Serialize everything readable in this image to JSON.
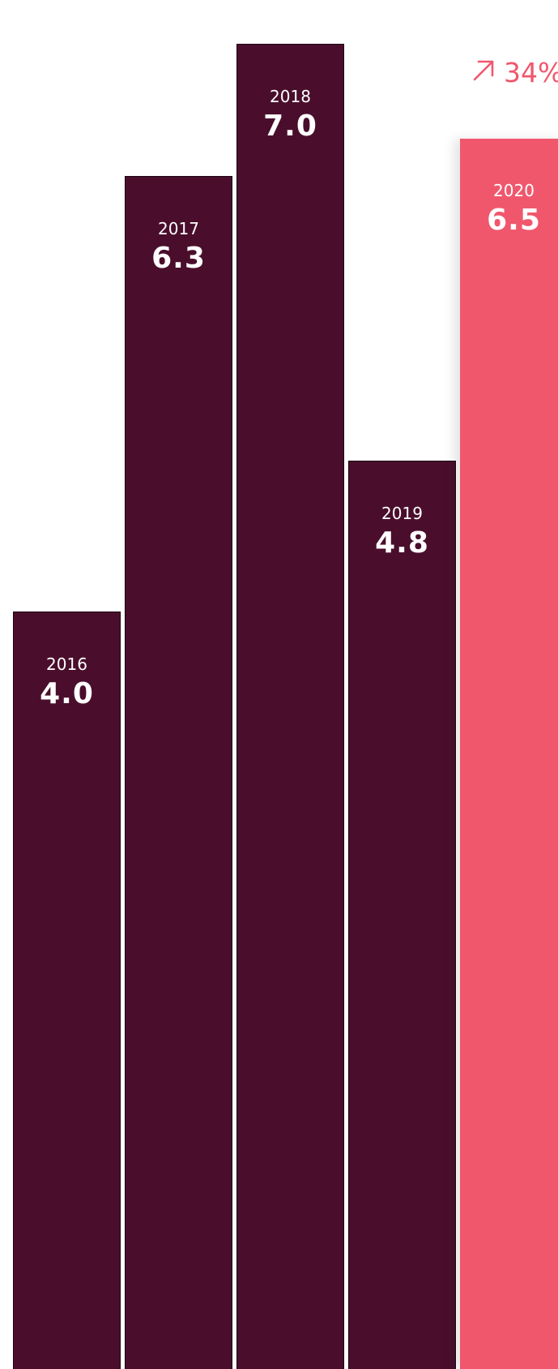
{
  "chart_data": {
    "type": "bar",
    "categories": [
      "2016",
      "2017",
      "2018",
      "2019",
      "2020"
    ],
    "values": [
      4.0,
      6.3,
      7.0,
      4.8,
      6.5
    ],
    "value_labels": [
      "4.0",
      "6.3",
      "7.0",
      "4.8",
      "6.5"
    ],
    "highlight_category": "2020",
    "change_label": "34%",
    "change_icon": "arrow-up-right-icon",
    "colors": {
      "past": "#4a0e2c",
      "current": "#f0576d",
      "labels": "#ffffff",
      "change": "#f0576d"
    },
    "ylim": [
      0,
      7.2
    ],
    "grid": false,
    "legend": "none"
  }
}
